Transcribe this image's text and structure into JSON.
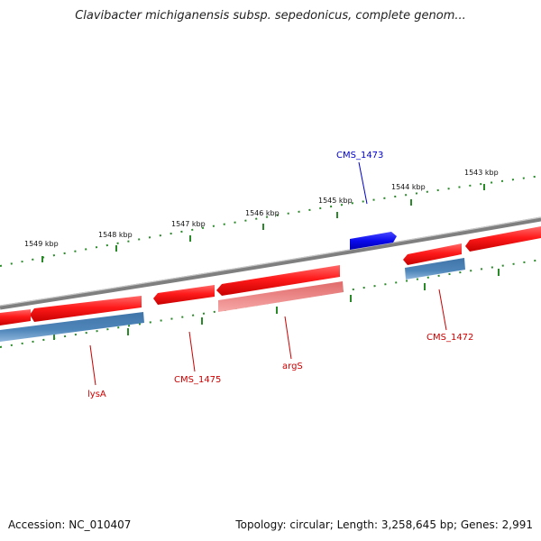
{
  "title": "Clavibacter michiganensis subsp. sepedonicus, complete genom...",
  "footer": {
    "accession": "Accession: NC_010407",
    "summary": "Topology: circular; Length: 3,258,645 bp; Genes: 2,991"
  },
  "colors": {
    "backbone": "#8a8a8a",
    "ruler": "#2a8a2a",
    "gene_strong": "#ff1a1a",
    "gene_light": "#f28a8a",
    "blue_gene": "#1414ee",
    "steel_bar": "#4a7fb0",
    "label_red": "#cc0000",
    "label_blue": "#0000cc"
  },
  "ruler_labels": [
    "1549 kbp",
    "1548 kbp",
    "1547 kbp",
    "1546 kbp",
    "1545 kbp",
    "1544 kbp",
    "1543 kbp"
  ],
  "gene_labels": [
    {
      "text": "CMS_1473",
      "color": "blue"
    },
    {
      "text": "CMS_1472",
      "color": "red"
    },
    {
      "text": "argS",
      "color": "red"
    },
    {
      "text": "CMS_1475",
      "color": "red"
    },
    {
      "text": "lysA",
      "color": "red"
    }
  ]
}
